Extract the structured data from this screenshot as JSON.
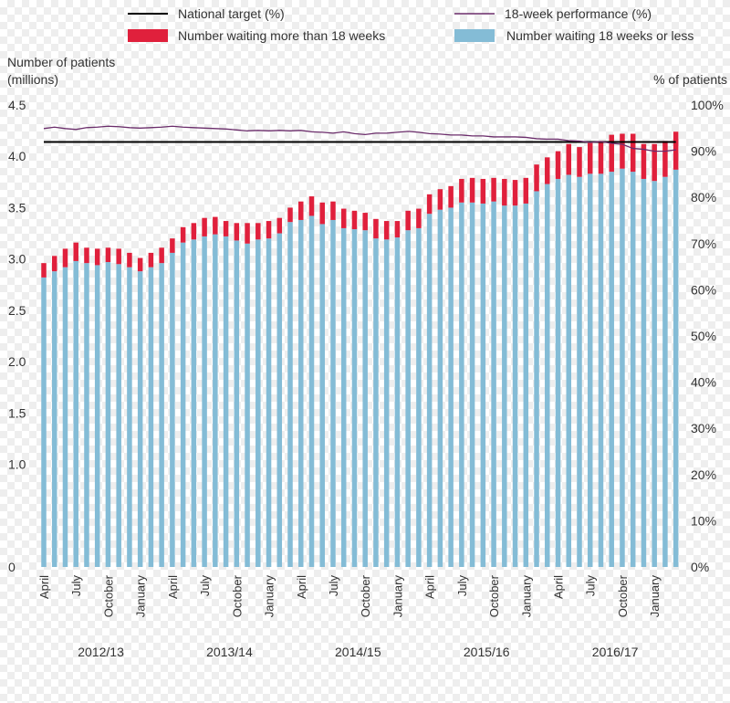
{
  "chart_data": {
    "type": "bar",
    "stacked": true,
    "legend": {
      "placement": "top",
      "items": [
        {
          "label": "National target (%)",
          "kind": "line",
          "color": "#000000"
        },
        {
          "label": "18-week performance (%)",
          "kind": "line",
          "color": "#6b2d6b"
        },
        {
          "label": "Number waiting more than 18 weeks",
          "kind": "box",
          "color": "#e0203c"
        },
        {
          "label": "Number waiting 18 weeks or less",
          "kind": "box",
          "color": "#84bcd6"
        }
      ]
    },
    "left_axis": {
      "title_line1": "Number of patients",
      "title_line2": "(millions)",
      "ylim": [
        0,
        4.5
      ],
      "ticks": [
        "0",
        "1.0",
        "1.5",
        "2.0",
        "2.5",
        "3.0",
        "3.5",
        "4.0",
        "4.5"
      ],
      "tick_values": [
        0,
        1.0,
        1.5,
        2.0,
        2.5,
        3.0,
        3.5,
        4.0,
        4.5
      ]
    },
    "right_axis": {
      "title": "% of patients",
      "ylim": [
        0,
        100
      ],
      "ticks": [
        "0%",
        "10%",
        "20%",
        "30%",
        "40%",
        "50%",
        "60%",
        "70%",
        "80%",
        "90%",
        "100%"
      ],
      "tick_values": [
        0,
        10,
        20,
        30,
        40,
        50,
        60,
        70,
        80,
        90,
        100
      ]
    },
    "month_labels": [
      "April",
      "July",
      "October",
      "January"
    ],
    "month_label_offsets": [
      0,
      3,
      6,
      9
    ],
    "years": [
      "2012/13",
      "2013/14",
      "2014/15",
      "2015/16",
      "2016/17"
    ],
    "series": [
      {
        "name": "Number waiting 18 weeks or less",
        "color": "#84bcd6",
        "values": [
          2.82,
          2.88,
          2.92,
          2.98,
          2.96,
          2.94,
          2.97,
          2.95,
          2.92,
          2.88,
          2.92,
          2.96,
          3.06,
          3.16,
          3.19,
          3.22,
          3.24,
          3.22,
          3.18,
          3.15,
          3.19,
          3.2,
          3.25,
          3.36,
          3.38,
          3.42,
          3.34,
          3.38,
          3.3,
          3.29,
          3.28,
          3.2,
          3.19,
          3.21,
          3.28,
          3.3,
          3.44,
          3.48,
          3.5,
          3.55,
          3.55,
          3.54,
          3.56,
          3.52,
          3.52,
          3.54,
          3.66,
          3.73,
          3.78,
          3.82,
          3.8,
          3.83,
          3.83,
          3.85,
          3.88,
          3.85,
          3.78,
          3.76,
          3.8,
          3.87
        ]
      },
      {
        "name": "Number waiting more than 18 weeks",
        "color": "#e0203c",
        "values": [
          0.14,
          0.15,
          0.18,
          0.18,
          0.15,
          0.16,
          0.14,
          0.15,
          0.14,
          0.13,
          0.14,
          0.15,
          0.14,
          0.15,
          0.16,
          0.18,
          0.17,
          0.15,
          0.17,
          0.2,
          0.16,
          0.17,
          0.15,
          0.14,
          0.18,
          0.19,
          0.21,
          0.18,
          0.19,
          0.18,
          0.17,
          0.19,
          0.18,
          0.16,
          0.19,
          0.19,
          0.19,
          0.2,
          0.21,
          0.23,
          0.24,
          0.24,
          0.23,
          0.26,
          0.25,
          0.25,
          0.26,
          0.26,
          0.27,
          0.3,
          0.29,
          0.3,
          0.32,
          0.36,
          0.34,
          0.37,
          0.34,
          0.36,
          0.35,
          0.37
        ]
      }
    ],
    "lines": [
      {
        "name": "18-week performance (%)",
        "color": "#6b2d6b",
        "values": [
          94.9,
          95.2,
          94.9,
          94.7,
          95.1,
          95.2,
          95.4,
          95.3,
          95.1,
          95.0,
          95.1,
          95.2,
          95.4,
          95.2,
          95.1,
          95.0,
          94.9,
          94.8,
          94.6,
          94.4,
          94.5,
          94.4,
          94.5,
          94.4,
          94.5,
          94.2,
          94.1,
          93.9,
          94.2,
          93.8,
          93.6,
          93.9,
          93.9,
          94.1,
          94.3,
          94.1,
          93.8,
          93.7,
          93.5,
          93.5,
          93.3,
          93.3,
          93.1,
          93.1,
          93.1,
          93.0,
          92.7,
          92.6,
          92.6,
          92.3,
          92.2,
          91.9,
          92.1,
          91.7,
          91.5,
          90.6,
          90.4,
          90.0,
          90.0,
          90.3
        ]
      },
      {
        "name": "National target (%)",
        "color": "#000000",
        "values": [
          92,
          92,
          92,
          92,
          92,
          92,
          92,
          92,
          92,
          92,
          92,
          92,
          92,
          92,
          92,
          92,
          92,
          92,
          92,
          92,
          92,
          92,
          92,
          92,
          92,
          92,
          92,
          92,
          92,
          92,
          92,
          92,
          92,
          92,
          92,
          92,
          92,
          92,
          92,
          92,
          92,
          92,
          92,
          92,
          92,
          92,
          92,
          92,
          92,
          92,
          92,
          92,
          92,
          92,
          92,
          92,
          92,
          92,
          92,
          92
        ]
      }
    ]
  }
}
